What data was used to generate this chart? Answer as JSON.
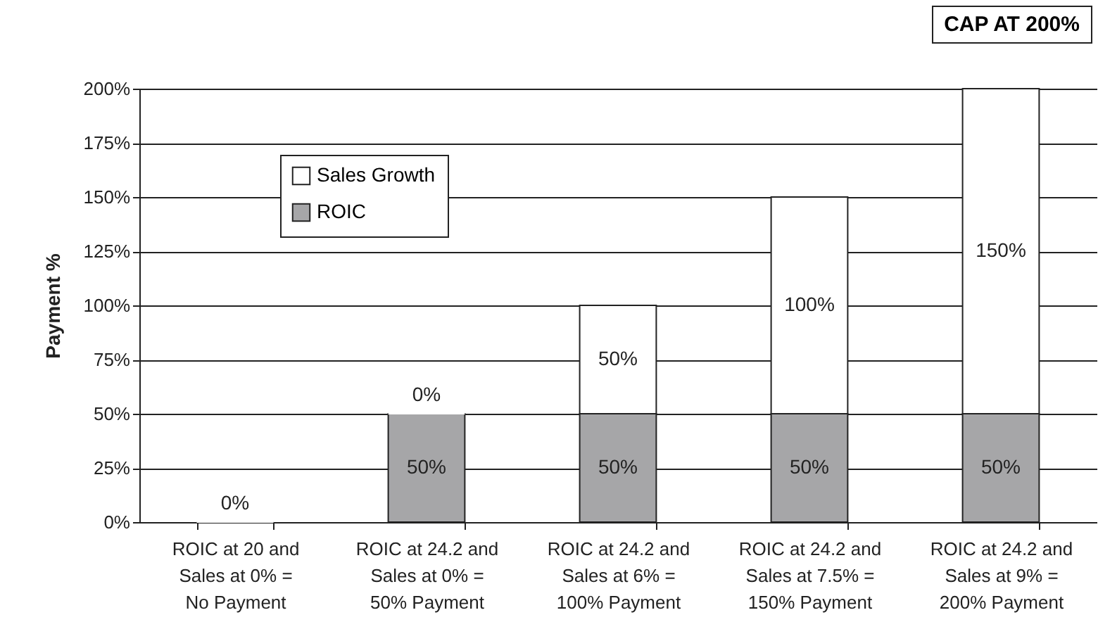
{
  "chart_data": {
    "type": "bar",
    "stacked": true,
    "ylabel": "Payment %",
    "annotations": [
      "CAP AT 200%"
    ],
    "categories": [
      "ROIC at 20 and\nSales at 0% =\nNo Payment",
      "ROIC at 24.2 and\nSales at 0% =\n50% Payment",
      "ROIC at 24.2 and\nSales at 6% =\n100% Payment",
      "ROIC at 24.2 and\nSales at 7.5% =\n150% Payment",
      "ROIC at 24.2 and\nSales at 9% =\n200% Payment"
    ],
    "series": [
      {
        "name": "ROIC",
        "color": "#a6a6a8",
        "values": [
          0,
          50,
          50,
          50,
          50
        ],
        "value_labels": [
          "0%",
          "50%",
          "50%",
          "50%",
          "50%"
        ]
      },
      {
        "name": "Sales Growth",
        "color": "#ffffff",
        "values": [
          0,
          0,
          50,
          100,
          150
        ],
        "value_labels": [
          null,
          "0%",
          "50%",
          "100%",
          "150%"
        ]
      }
    ],
    "ylim": [
      0,
      200
    ],
    "yticks": [
      {
        "value": 0,
        "label": "0%"
      },
      {
        "value": 25,
        "label": "25%"
      },
      {
        "value": 50,
        "label": "50%"
      },
      {
        "value": 75,
        "label": "75%"
      },
      {
        "value": 100,
        "label": "100%"
      },
      {
        "value": 125,
        "label": "125%"
      },
      {
        "value": 150,
        "label": "150%"
      },
      {
        "value": 175,
        "label": "175%"
      },
      {
        "value": 200,
        "label": "200%"
      }
    ],
    "grid": "y",
    "legend": "top left"
  }
}
